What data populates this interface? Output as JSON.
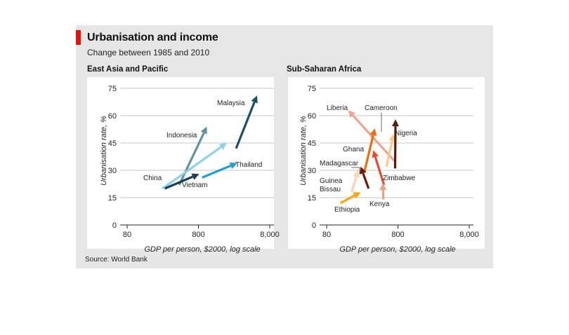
{
  "header": {
    "title": "Urbanisation and income",
    "subtitle": "Change between 1985 and 2010"
  },
  "source": "Source: World Bank",
  "chart_data": [
    {
      "type": "scatter",
      "title": "East Asia and Pacific",
      "xlabel": "GDP per person, $2000, log scale",
      "ylabel": "Urbanisation rate, %",
      "x_scale": "log",
      "xlim": [
        80,
        8000
      ],
      "ylim": [
        0,
        75
      ],
      "x_ticks": [
        "80",
        "800",
        "8,000"
      ],
      "y_ticks": [
        "0",
        "15",
        "30",
        "45",
        "60",
        "75"
      ],
      "grid": true,
      "series": [
        {
          "name": "Malaysia",
          "color": "#1d4f63",
          "start": [
            2700,
            42
          ],
          "end": [
            5300,
            71
          ]
        },
        {
          "name": "Indonesia",
          "color": "#6390a3",
          "start": [
            430,
            22
          ],
          "end": [
            1050,
            54
          ]
        },
        {
          "name": "Thailand",
          "color": "#1f9fd1",
          "start": [
            900,
            26
          ],
          "end": [
            2800,
            34
          ]
        },
        {
          "name": "China",
          "color": "#8fd0ea",
          "start": [
            250,
            20
          ],
          "end": [
            2000,
            45
          ]
        },
        {
          "name": "Vietnam",
          "color": "#1a3f55",
          "start": [
            270,
            20
          ],
          "end": [
            820,
            28
          ]
        }
      ]
    },
    {
      "type": "scatter",
      "title": "Sub-Saharan Africa",
      "xlabel": "GDP per person, $2000, log scale",
      "ylabel": "Urbanisation rate, %",
      "x_scale": "log",
      "xlim": [
        80,
        8000
      ],
      "ylim": [
        0,
        75
      ],
      "x_ticks": [
        "80",
        "800",
        "8,000"
      ],
      "y_ticks": [
        "0",
        "15",
        "30",
        "45",
        "60",
        "75"
      ],
      "grid": true,
      "series": [
        {
          "name": "Liberia",
          "color": "#eba690",
          "start": [
            720,
            35
          ],
          "end": [
            160,
            63
          ]
        },
        {
          "name": "Cameroon",
          "color": "#fbc98a",
          "start": [
            550,
            32
          ],
          "end": [
            700,
            50
          ]
        },
        {
          "name": "Nigeria",
          "color": "#5a1a0a",
          "start": [
            730,
            31
          ],
          "end": [
            740,
            58
          ]
        },
        {
          "name": "Ghana",
          "color": "#f26b0f",
          "start": [
            270,
            29
          ],
          "end": [
            380,
            53
          ]
        },
        {
          "name": "Madagascar",
          "color": "#6b1d0c",
          "start": [
            310,
            20
          ],
          "end": [
            240,
            32
          ]
        },
        {
          "name": "Zimbabwe",
          "color": "#e64a2f",
          "start": [
            510,
            22
          ],
          "end": [
            360,
            41
          ]
        },
        {
          "name": "Guinea Bissau",
          "color": "#f7d4ba",
          "start": [
            180,
            18
          ],
          "end": [
            220,
            30
          ]
        },
        {
          "name": "Kenya",
          "color": "#e3a48a",
          "start": [
            500,
            14
          ],
          "end": [
            490,
            23
          ]
        },
        {
          "name": "Ethiopia",
          "color": "#f7a21b",
          "start": [
            125,
            12
          ],
          "end": [
            240,
            18
          ]
        }
      ]
    }
  ]
}
